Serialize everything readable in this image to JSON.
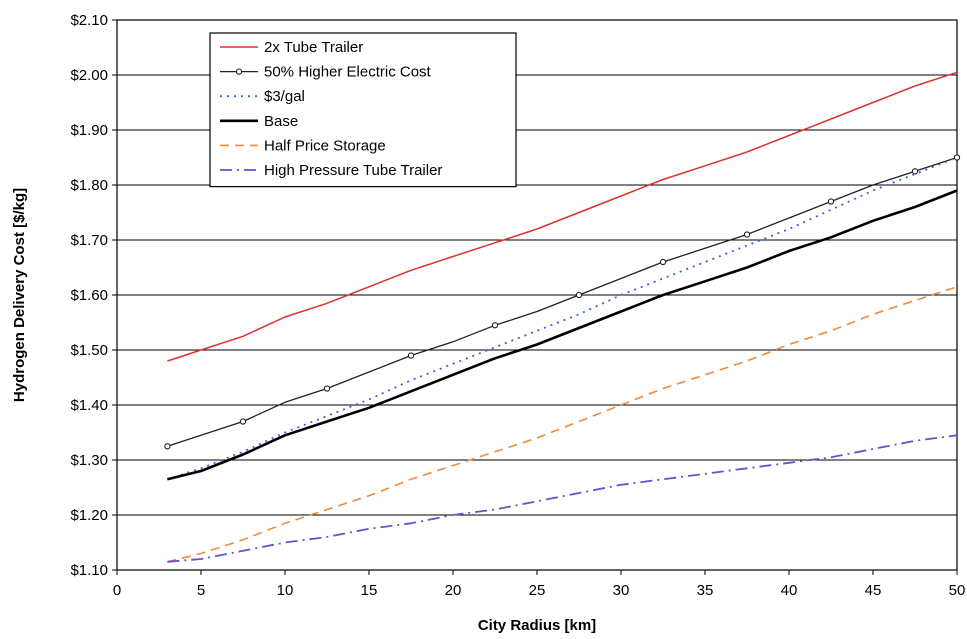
{
  "chart_data": {
    "type": "line",
    "title": "",
    "xlabel": "City Radius [km]",
    "ylabel": "Hydrogen Delivery Cost [$/kg]",
    "xlim": [
      0,
      50
    ],
    "ylim": [
      1.1,
      2.1
    ],
    "x_ticks": [
      0,
      5,
      10,
      15,
      20,
      25,
      30,
      35,
      40,
      45,
      50
    ],
    "x_tick_labels": [
      "0",
      "5",
      "10",
      "15",
      "20",
      "25",
      "30",
      "35",
      "40",
      "45",
      "50"
    ],
    "y_ticks": [
      1.1,
      1.2,
      1.3,
      1.4,
      1.5,
      1.6,
      1.7,
      1.8,
      1.9,
      2.0,
      2.1
    ],
    "y_tick_labels": [
      "$1.10",
      "$1.20",
      "$1.30",
      "$1.40",
      "$1.50",
      "$1.60",
      "$1.70",
      "$1.80",
      "$1.90",
      "$2.00",
      "$2.10"
    ],
    "grid": "horizontal",
    "legend_position": "top-left",
    "x": [
      3,
      5,
      7.5,
      10,
      12.5,
      15,
      17.5,
      20,
      22.5,
      25,
      27.5,
      30,
      32.5,
      35,
      37.5,
      40,
      42.5,
      45,
      47.5,
      50
    ],
    "series": [
      {
        "name": "2x Tube Trailer",
        "color": "#e03030",
        "style": "solid",
        "values": [
          1.48,
          1.5,
          1.525,
          1.56,
          1.585,
          1.615,
          1.645,
          1.67,
          1.695,
          1.72,
          1.75,
          1.78,
          1.81,
          1.835,
          1.86,
          1.89,
          1.92,
          1.95,
          1.98,
          2.005
        ]
      },
      {
        "name": "50% Higher Electric Cost",
        "color": "#222222",
        "style": "solid-marker",
        "values": [
          1.325,
          1.345,
          1.37,
          1.405,
          1.43,
          1.46,
          1.49,
          1.515,
          1.545,
          1.57,
          1.6,
          1.63,
          1.66,
          1.685,
          1.71,
          1.74,
          1.77,
          1.8,
          1.825,
          1.85
        ]
      },
      {
        "name": "$3/gal",
        "color": "#3a5ee8",
        "style": "dotted",
        "values": [
          1.265,
          1.285,
          1.315,
          1.35,
          1.38,
          1.41,
          1.445,
          1.475,
          1.505,
          1.535,
          1.565,
          1.6,
          1.63,
          1.66,
          1.69,
          1.72,
          1.755,
          1.79,
          1.82,
          1.85
        ]
      },
      {
        "name": "Base",
        "color": "#000000",
        "style": "thick",
        "values": [
          1.265,
          1.28,
          1.31,
          1.345,
          1.37,
          1.395,
          1.425,
          1.455,
          1.485,
          1.51,
          1.54,
          1.57,
          1.6,
          1.625,
          1.65,
          1.68,
          1.705,
          1.735,
          1.76,
          1.79
        ]
      },
      {
        "name": "Half Price Storage",
        "color": "#f08a3c",
        "style": "dashed",
        "values": [
          1.115,
          1.13,
          1.155,
          1.185,
          1.21,
          1.235,
          1.265,
          1.29,
          1.315,
          1.34,
          1.37,
          1.4,
          1.43,
          1.455,
          1.48,
          1.51,
          1.535,
          1.565,
          1.59,
          1.615
        ]
      },
      {
        "name": "High Pressure Tube Trailer",
        "color": "#6a4fcf",
        "style": "dashdot",
        "values": [
          1.115,
          1.12,
          1.135,
          1.15,
          1.16,
          1.175,
          1.185,
          1.2,
          1.21,
          1.225,
          1.24,
          1.255,
          1.265,
          1.275,
          1.285,
          1.295,
          1.305,
          1.32,
          1.335,
          1.345
        ]
      }
    ]
  }
}
